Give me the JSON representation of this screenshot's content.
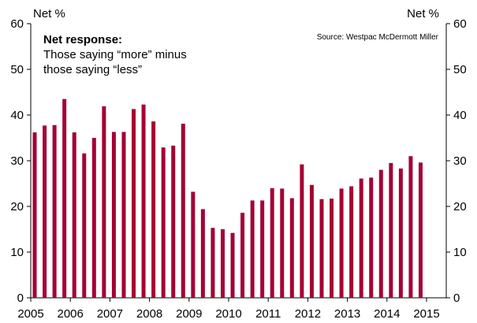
{
  "chart_data": {
    "type": "bar",
    "ylabel_left": "Net %",
    "ylabel_right": "Net %",
    "annotation_title": "Net response:",
    "annotation_lines": [
      "Those saying “more” minus",
      "those saying “less”"
    ],
    "source": "Source: Westpac McDermott Miller",
    "ylim": [
      0,
      60
    ],
    "yticks": [
      "0",
      "10",
      "20",
      "30",
      "40",
      "50",
      "60"
    ],
    "xlim": [
      2005,
      2015.2
    ],
    "xticks": [
      "2005",
      "2006",
      "2007",
      "2008",
      "2009",
      "2010",
      "2011",
      "2012",
      "2013",
      "2014",
      "2015"
    ],
    "bar_color": "#a50034",
    "series": [
      {
        "x": [
          2005.1,
          2005.35,
          2005.6,
          2005.85,
          2006.1,
          2006.35,
          2006.6,
          2006.85,
          2007.1,
          2007.35,
          2007.6,
          2007.85,
          2008.1,
          2008.35,
          2008.6,
          2008.85,
          2009.1,
          2009.35,
          2009.6,
          2009.85,
          2010.1,
          2010.35,
          2010.6,
          2010.85,
          2011.1,
          2011.35,
          2011.6,
          2011.85,
          2012.1,
          2012.35,
          2012.6,
          2012.85,
          2013.1,
          2013.35,
          2013.6,
          2013.85,
          2014.1,
          2014.35,
          2014.6,
          2014.85
        ],
        "values": [
          36.2,
          37.7,
          37.8,
          43.5,
          36.2,
          31.6,
          35.0,
          41.9,
          36.3,
          36.3,
          41.3,
          42.3,
          38.6,
          32.9,
          33.3,
          38.1,
          23.2,
          19.4,
          15.3,
          15.0,
          14.2,
          18.6,
          21.3,
          21.3,
          24.0,
          23.9,
          21.8,
          29.2,
          24.7,
          21.6,
          21.7,
          23.9,
          24.4,
          26.1,
          26.3,
          28.0,
          29.5,
          28.3,
          31.0,
          29.6
        ]
      }
    ]
  }
}
